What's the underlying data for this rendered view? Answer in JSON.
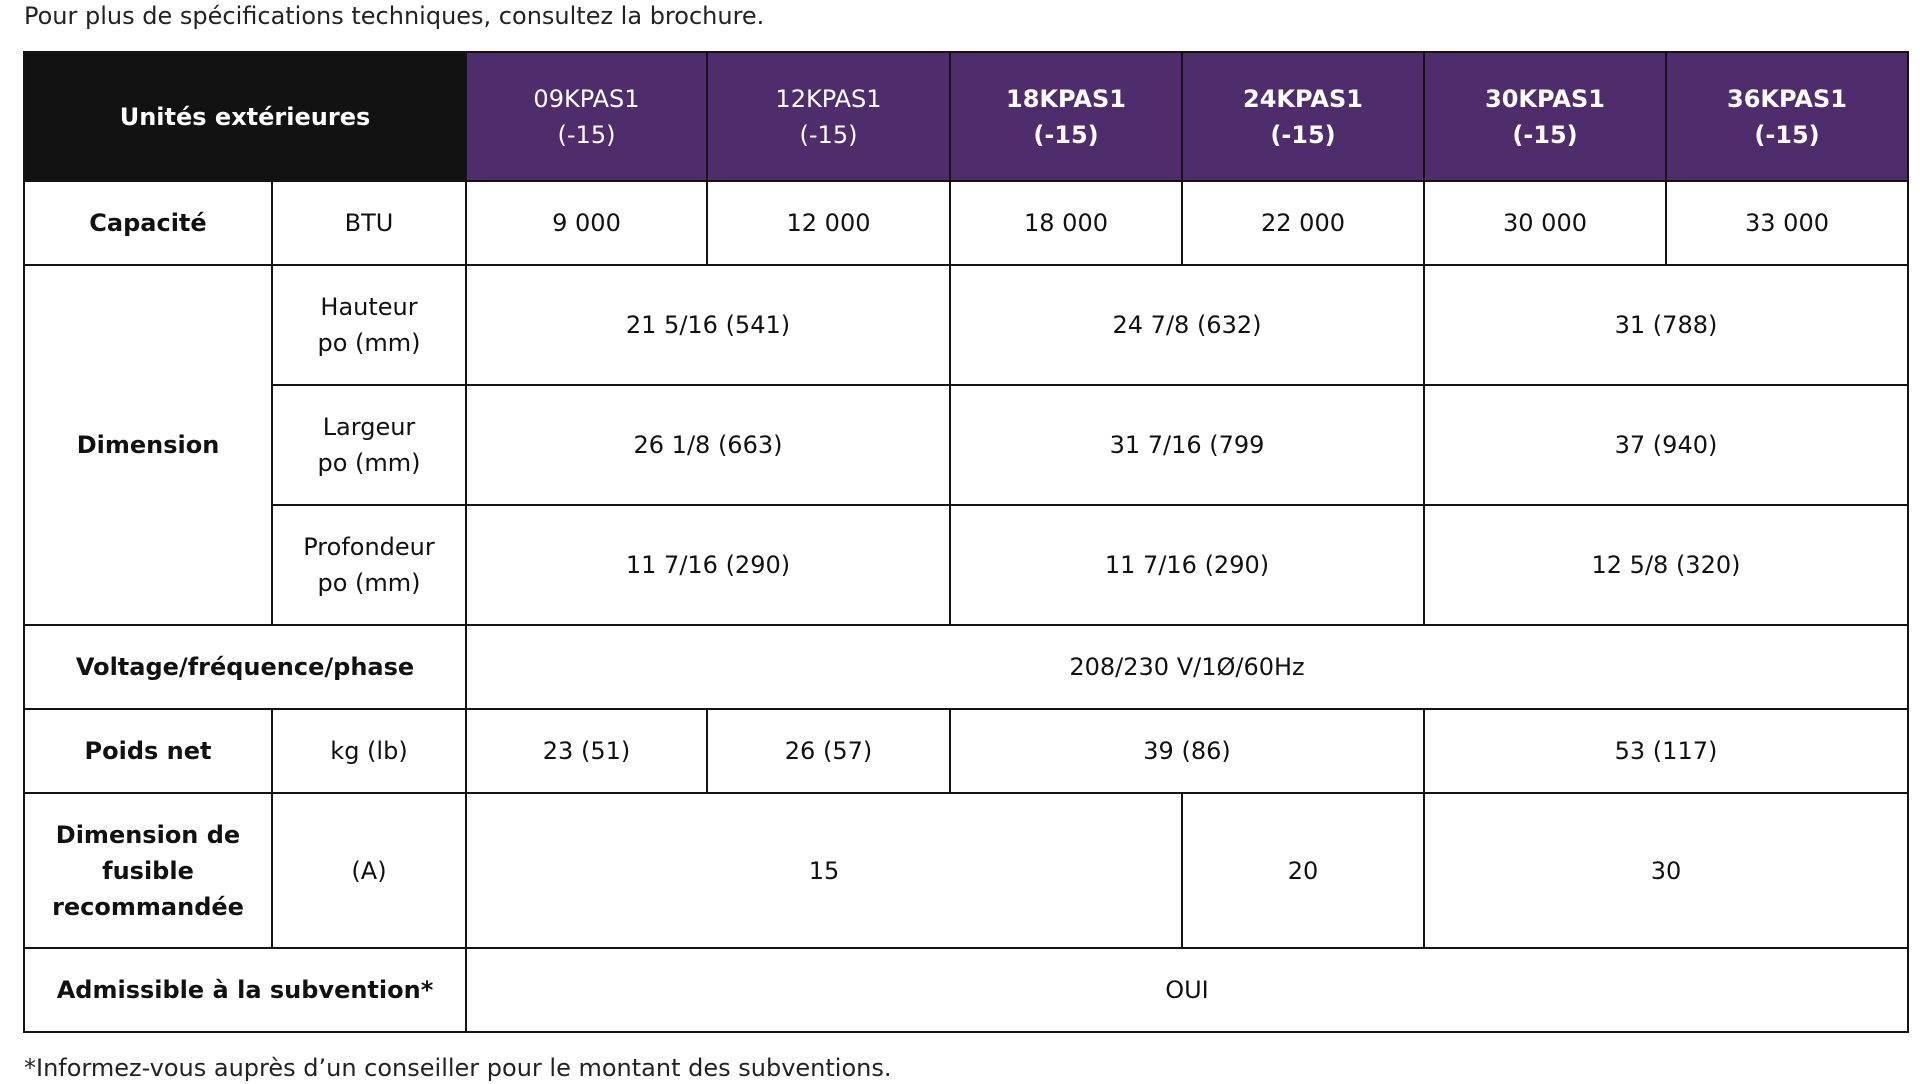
{
  "intro": "Pour plus de spécifications techniques, consultez la brochure.",
  "header": {
    "corner": "Unités extérieures",
    "models": [
      {
        "name": "09KPAS1",
        "suffix": "(-15)"
      },
      {
        "name": "12KPAS1",
        "suffix": "(-15)"
      },
      {
        "name": "18KPAS1",
        "suffix": "(-15)"
      },
      {
        "name": "24KPAS1",
        "suffix": "(-15)"
      },
      {
        "name": "30KPAS1",
        "suffix": "(-15)"
      },
      {
        "name": "36KPAS1",
        "suffix": "(-15)"
      }
    ]
  },
  "rows": {
    "capacity": {
      "label": "Capacité",
      "unit": "BTU",
      "values": [
        "9 000",
        "12 000",
        "18 000",
        "22 000",
        "30 000",
        "33 000"
      ]
    },
    "dimension": {
      "label": "Dimension",
      "height": {
        "unit_line1": "Hauteur",
        "unit_line2": "po (mm)",
        "values": [
          "21 5/16 (541)",
          "24 7/8 (632)",
          "31 (788)"
        ]
      },
      "width": {
        "unit_line1": "Largeur",
        "unit_line2": "po (mm)",
        "values": [
          "26 1/8 (663)",
          "31 7/16 (799",
          "37 (940)"
        ]
      },
      "depth": {
        "unit_line1": "Profondeur",
        "unit_line2": "po (mm)",
        "values": [
          "11 7/16 (290)",
          "11 7/16 (290)",
          "12 5/8 (320)"
        ]
      }
    },
    "voltage": {
      "label": "Voltage/fréquence/phase",
      "value": "208/230 V/1Ø/60Hz"
    },
    "weight": {
      "label": "Poids net",
      "unit": "kg (lb)",
      "values": [
        "23 (51)",
        "26 (57)",
        "39 (86)",
        "53 (117)"
      ]
    },
    "fuse": {
      "label": "Dimension de fusible recommandée",
      "unit": "(A)",
      "values": [
        "15",
        "20",
        "30"
      ]
    },
    "subsidy": {
      "label": "Admissible à la subvention*",
      "value": "OUI"
    }
  },
  "footnote": "*Informez-vous auprès d’un conseiller pour le montant des subventions.",
  "colors": {
    "header_purple": "#4f2d6c",
    "header_black": "#121212",
    "border": "#141414"
  }
}
